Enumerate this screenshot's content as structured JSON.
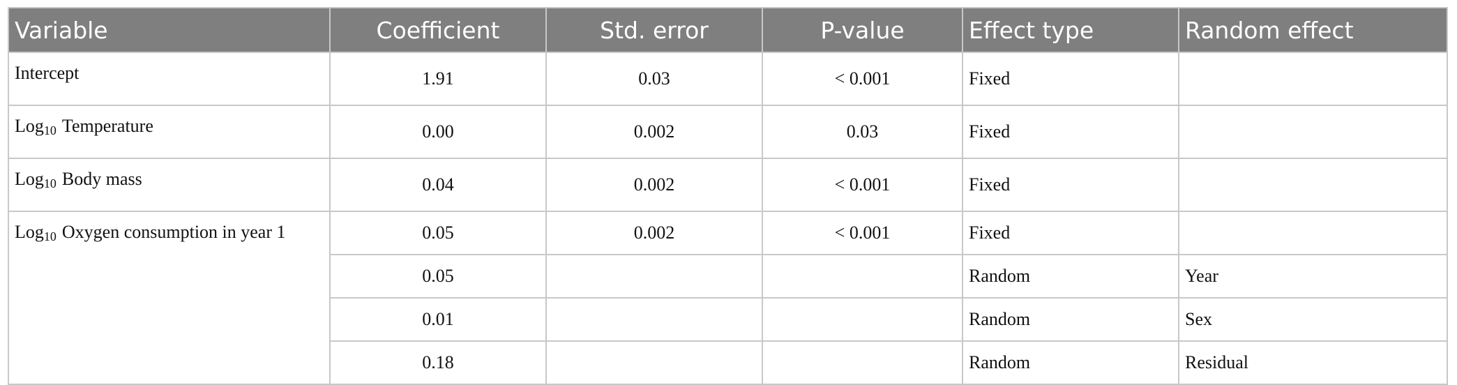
{
  "table": {
    "header": [
      "Variable",
      "Coefficient",
      "Std. error",
      "P-value",
      "Effect type",
      "Random effect"
    ],
    "rows": [
      {
        "variable": [
          "Intercept"
        ],
        "coefficient": "1.91",
        "std_error": "0.03",
        "p_value": "< 0.001",
        "effect_type": "Fixed"
      },
      {
        "variable": [
          "Log",
          "10",
          "Temperature"
        ],
        "coefficient": "0.00",
        "std_error": "0.002",
        "p_value": "0.03",
        "effect_type": "Fixed"
      },
      {
        "variable": [
          "Log",
          "10",
          "Body mass"
        ],
        "coefficient": "0.04",
        "std_error": "0.002",
        "p_value": "< 0.001",
        "effect_type": "Fixed"
      },
      {
        "variable": [
          "Log",
          "10",
          "Oxygen consumption in year 1"
        ],
        "coefficient": "0.05",
        "std_error": "0.002",
        "p_value": "< 0.001",
        "effect_type": "Fixed"
      },
      {
        "coefficient": "0.05",
        "effect_type": "Random",
        "random_effect": "Year"
      },
      {
        "coefficient": "0.01",
        "effect_type": "Random",
        "random_effect": "Sex"
      },
      {
        "coefficient": "0.18",
        "effect_type": "Random",
        "random_effect": "Residual"
      }
    ]
  }
}
